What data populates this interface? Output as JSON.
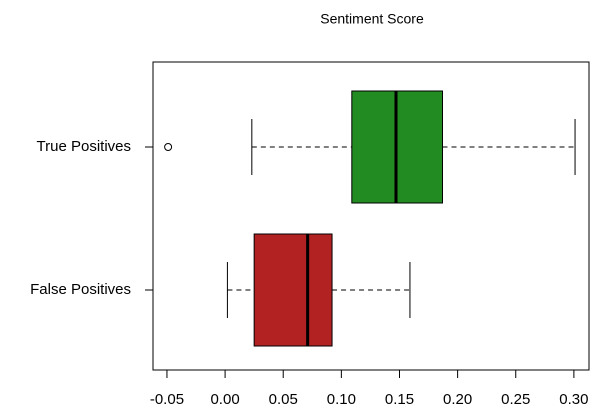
{
  "chart_data": {
    "type": "boxplot",
    "title": "Sentiment Score",
    "orientation": "horizontal",
    "categories": [
      "True Positives",
      "False Positives"
    ],
    "boxes": [
      {
        "min": 0.023,
        "q1": 0.109,
        "median": 0.147,
        "q3": 0.187,
        "max": 0.301,
        "outliers": [
          -0.049
        ],
        "color": "#228b22"
      },
      {
        "min": 0.002,
        "q1": 0.025,
        "median": 0.071,
        "q3": 0.092,
        "max": 0.159,
        "outliers": [],
        "color": "#b22222"
      }
    ],
    "xlim": [
      -0.062,
      0.313
    ],
    "xticks": [
      -0.05,
      {
        "value": 0,
        "label": "0.00"
      },
      0.05,
      {
        "value": 0.1,
        "label": "0.10"
      },
      0.15,
      {
        "value": 0.2,
        "label": "0.20"
      },
      0.25,
      {
        "value": 0.3,
        "label": "0.30"
      }
    ]
  }
}
